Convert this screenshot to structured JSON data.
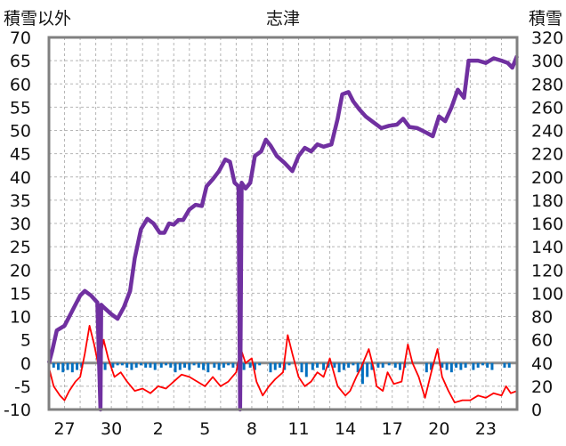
{
  "chart_data": {
    "type": "line",
    "title": "志津",
    "left_axis_label": "積雪以外",
    "right_axis_label": "積雪",
    "left_ylim": [
      -10,
      70
    ],
    "left_yticks": [
      -10,
      -5,
      0,
      5,
      10,
      15,
      20,
      25,
      30,
      35,
      40,
      45,
      50,
      55,
      60,
      65,
      70
    ],
    "right_ylim": [
      0,
      320
    ],
    "right_yticks": [
      0,
      20,
      40,
      60,
      80,
      100,
      120,
      140,
      160,
      180,
      200,
      220,
      240,
      260,
      280,
      300,
      320
    ],
    "x_day_range": [
      0,
      30
    ],
    "x_ticks": [
      {
        "day": 1,
        "label": "27"
      },
      {
        "day": 4,
        "label": "30"
      },
      {
        "day": 7,
        "label": "2"
      },
      {
        "day": 10,
        "label": "5"
      },
      {
        "day": 13,
        "label": "8"
      },
      {
        "day": 16,
        "label": "11"
      },
      {
        "day": 19,
        "label": "14"
      },
      {
        "day": 22,
        "label": "17"
      },
      {
        "day": 25,
        "label": "20"
      },
      {
        "day": 28,
        "label": "23"
      }
    ],
    "grid": true,
    "colors": {
      "snow_depth": "#7030a0",
      "temperature": "#ff0000",
      "precipitation": "#0070c0"
    },
    "series": [
      {
        "key": "snow_depth",
        "axis": "right",
        "points": [
          [
            0,
            40
          ],
          [
            0.2,
            50
          ],
          [
            0.5,
            68
          ],
          [
            1,
            72
          ],
          [
            1.5,
            85
          ],
          [
            2,
            98
          ],
          [
            2.3,
            102
          ],
          [
            2.7,
            98
          ],
          [
            3.1,
            92
          ],
          [
            3.3,
            0
          ],
          [
            3.35,
            90
          ],
          [
            3.5,
            88
          ],
          [
            4,
            82
          ],
          [
            4.4,
            78
          ],
          [
            4.8,
            88
          ],
          [
            5.2,
            102
          ],
          [
            5.5,
            130
          ],
          [
            5.9,
            155
          ],
          [
            6.3,
            164
          ],
          [
            6.7,
            160
          ],
          [
            7.1,
            152
          ],
          [
            7.4,
            152
          ],
          [
            7.7,
            160
          ],
          [
            8.0,
            159
          ],
          [
            8.3,
            163
          ],
          [
            8.6,
            163
          ],
          [
            9.0,
            172
          ],
          [
            9.4,
            176
          ],
          [
            9.8,
            175
          ],
          [
            10.1,
            192
          ],
          [
            10.5,
            198
          ],
          [
            10.9,
            205
          ],
          [
            11.3,
            215
          ],
          [
            11.6,
            213
          ],
          [
            11.9,
            195
          ],
          [
            12.15,
            192
          ],
          [
            12.25,
            0
          ],
          [
            12.35,
            195
          ],
          [
            12.6,
            190
          ],
          [
            12.9,
            195
          ],
          [
            13.2,
            218
          ],
          [
            13.6,
            222
          ],
          [
            13.9,
            232
          ],
          [
            14.2,
            227
          ],
          [
            14.6,
            218
          ],
          [
            15.1,
            212
          ],
          [
            15.6,
            205
          ],
          [
            16,
            218
          ],
          [
            16.4,
            225
          ],
          [
            16.8,
            222
          ],
          [
            17.2,
            228
          ],
          [
            17.6,
            226
          ],
          [
            18.1,
            228
          ],
          [
            18.5,
            250
          ],
          [
            18.8,
            271
          ],
          [
            19.2,
            273
          ],
          [
            19.5,
            265
          ],
          [
            19.9,
            258
          ],
          [
            20.3,
            252
          ],
          [
            20.8,
            247
          ],
          [
            21.3,
            242
          ],
          [
            21.8,
            244
          ],
          [
            22.3,
            245
          ],
          [
            22.7,
            250
          ],
          [
            23.1,
            243
          ],
          [
            23.6,
            242
          ],
          [
            24.2,
            238
          ],
          [
            24.6,
            235
          ],
          [
            25,
            252
          ],
          [
            25.4,
            248
          ],
          [
            25.8,
            260
          ],
          [
            26.2,
            275
          ],
          [
            26.6,
            268
          ],
          [
            26.9,
            300
          ],
          [
            27.5,
            300
          ],
          [
            28,
            298
          ],
          [
            28.5,
            302
          ],
          [
            29,
            300
          ],
          [
            29.4,
            298
          ],
          [
            29.7,
            294
          ],
          [
            30,
            304
          ]
        ]
      },
      {
        "key": "temperature",
        "axis": "left",
        "points": [
          [
            0,
            -1
          ],
          [
            0.3,
            -5
          ],
          [
            0.7,
            -7
          ],
          [
            1,
            -8
          ],
          [
            1.3,
            -6
          ],
          [
            1.7,
            -4
          ],
          [
            2,
            -3
          ],
          [
            2.3,
            2
          ],
          [
            2.6,
            8
          ],
          [
            2.9,
            4
          ],
          [
            3.2,
            -1
          ],
          [
            3.5,
            5
          ],
          [
            3.8,
            1
          ],
          [
            4.2,
            -3
          ],
          [
            4.6,
            -2
          ],
          [
            5.0,
            -4
          ],
          [
            5.5,
            -6
          ],
          [
            6.0,
            -5.5
          ],
          [
            6.5,
            -6.5
          ],
          [
            7,
            -5
          ],
          [
            7.5,
            -5.5
          ],
          [
            8,
            -4
          ],
          [
            8.5,
            -2.5
          ],
          [
            9,
            -3
          ],
          [
            9.5,
            -4
          ],
          [
            10,
            -5
          ],
          [
            10.5,
            -3
          ],
          [
            11,
            -5
          ],
          [
            11.5,
            -4
          ],
          [
            12,
            -2
          ],
          [
            12.3,
            3
          ],
          [
            12.6,
            0
          ],
          [
            13,
            1
          ],
          [
            13.3,
            -4
          ],
          [
            13.7,
            -7
          ],
          [
            14.1,
            -5
          ],
          [
            14.5,
            -3.5
          ],
          [
            15,
            -2
          ],
          [
            15.3,
            6
          ],
          [
            15.6,
            2
          ],
          [
            16,
            -3
          ],
          [
            16.4,
            -5
          ],
          [
            16.8,
            -4
          ],
          [
            17.2,
            -2
          ],
          [
            17.6,
            -3
          ],
          [
            18,
            1
          ],
          [
            18.5,
            -5
          ],
          [
            19,
            -7
          ],
          [
            19.3,
            -6
          ],
          [
            19.7,
            -3
          ],
          [
            20,
            -1
          ],
          [
            20.5,
            3
          ],
          [
            20.8,
            -1
          ],
          [
            21,
            -5
          ],
          [
            21.4,
            -6
          ],
          [
            21.7,
            -2
          ],
          [
            22.1,
            -4.5
          ],
          [
            22.6,
            -4
          ],
          [
            23,
            4
          ],
          [
            23.3,
            0
          ],
          [
            23.7,
            -3
          ],
          [
            24.1,
            -7.5
          ],
          [
            24.5,
            -2
          ],
          [
            24.9,
            3
          ],
          [
            25.2,
            -3
          ],
          [
            25.6,
            -6
          ],
          [
            26,
            -8.5
          ],
          [
            26.5,
            -8
          ],
          [
            27,
            -8
          ],
          [
            27.5,
            -7
          ],
          [
            28,
            -7.5
          ],
          [
            28.5,
            -6.5
          ],
          [
            29,
            -7
          ],
          [
            29.3,
            -5
          ],
          [
            29.6,
            -6.5
          ],
          [
            30,
            -6
          ]
        ]
      },
      {
        "key": "precipitation",
        "axis": "left",
        "bars": [
          [
            0.3,
            -1
          ],
          [
            0.6,
            -1.5
          ],
          [
            0.9,
            -2
          ],
          [
            1.2,
            -1.5
          ],
          [
            1.5,
            -2
          ],
          [
            1.8,
            -1.5
          ],
          [
            2.1,
            -1
          ],
          [
            3.3,
            -2
          ],
          [
            3.6,
            -1.5
          ],
          [
            4.1,
            -1
          ],
          [
            4.4,
            -0.5
          ],
          [
            4.7,
            -0.5
          ],
          [
            5.0,
            -1
          ],
          [
            5.3,
            -1.5
          ],
          [
            5.6,
            -1
          ],
          [
            5.9,
            -0.5
          ],
          [
            6.2,
            -1
          ],
          [
            6.5,
            -1
          ],
          [
            6.8,
            -1.5
          ],
          [
            7.2,
            -1
          ],
          [
            7.5,
            -0.5
          ],
          [
            7.8,
            -1
          ],
          [
            8.1,
            -2
          ],
          [
            8.4,
            -1.5
          ],
          [
            8.7,
            -1
          ],
          [
            9.0,
            -1.5
          ],
          [
            9.3,
            -0.5
          ],
          [
            9.6,
            -1
          ],
          [
            9.9,
            -1.5
          ],
          [
            10.2,
            -2
          ],
          [
            10.6,
            -1
          ],
          [
            10.9,
            -1.5
          ],
          [
            11.2,
            -1
          ],
          [
            11.5,
            -0.5
          ],
          [
            11.8,
            -1
          ],
          [
            12.1,
            -1.5
          ],
          [
            12.5,
            -1.5
          ],
          [
            12.9,
            -1
          ],
          [
            13.2,
            -1.5
          ],
          [
            13.5,
            -0.5
          ],
          [
            14.2,
            -2
          ],
          [
            14.5,
            -1.5
          ],
          [
            14.8,
            -1
          ],
          [
            15.1,
            -1.5
          ],
          [
            15.4,
            -0.5
          ],
          [
            16.2,
            -2
          ],
          [
            16.5,
            -3
          ],
          [
            16.9,
            -1.5
          ],
          [
            17.2,
            -1
          ],
          [
            17.6,
            -1.5
          ],
          [
            17.9,
            -1
          ],
          [
            18.3,
            -1
          ],
          [
            18.6,
            -2
          ],
          [
            18.9,
            -1.5
          ],
          [
            19.2,
            -1
          ],
          [
            19.5,
            -0.5
          ],
          [
            19.8,
            -2
          ],
          [
            20.1,
            -4.5
          ],
          [
            20.4,
            -3
          ],
          [
            20.7,
            -1.5
          ],
          [
            21.1,
            -1
          ],
          [
            21.4,
            -1
          ],
          [
            21.8,
            -0.5
          ],
          [
            22.2,
            -1
          ],
          [
            22.5,
            -1.5
          ],
          [
            22.8,
            -1
          ],
          [
            24.2,
            -2
          ],
          [
            24.5,
            -1.5
          ],
          [
            25.2,
            -1
          ],
          [
            25.5,
            -1.5
          ],
          [
            25.8,
            -2
          ],
          [
            26.1,
            -1
          ],
          [
            26.4,
            -1.5
          ],
          [
            26.7,
            -1
          ],
          [
            27.2,
            -1.5
          ],
          [
            27.5,
            -1
          ],
          [
            27.8,
            -0.5
          ],
          [
            28.1,
            -1
          ],
          [
            28.4,
            -1.5
          ],
          [
            29.2,
            -1
          ],
          [
            29.5,
            -1
          ]
        ]
      }
    ]
  }
}
